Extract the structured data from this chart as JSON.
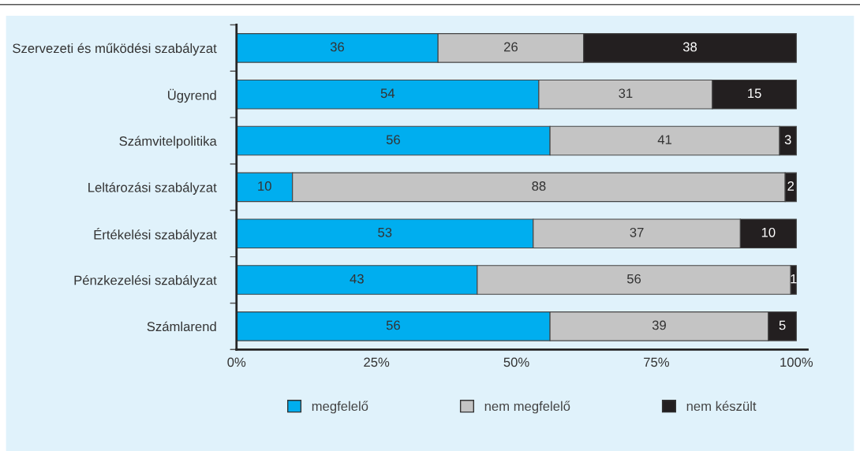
{
  "chart_data": {
    "type": "bar",
    "orientation": "horizontal",
    "stacked": true,
    "categories": [
      "Szervezeti és működési szabályzat",
      "Ügyrend",
      "Számvitelpolitika",
      "Leltározási szabályzat",
      "Értékelési szabályzat",
      "Pénzkezelési szabályzat",
      "Számlarend"
    ],
    "series": [
      {
        "name": "megfelelő",
        "color": "#00aeef",
        "values": [
          36,
          54,
          56,
          10,
          53,
          43,
          56
        ]
      },
      {
        "name": "nem megfelelő",
        "color": "#c4c4c4",
        "values": [
          26,
          31,
          41,
          88,
          37,
          56,
          39
        ]
      },
      {
        "name": "nem készült",
        "color": "#231f20",
        "values": [
          38,
          15,
          3,
          2,
          10,
          1,
          5
        ]
      }
    ],
    "xlim": [
      0,
      102
    ],
    "xticks": [
      {
        "value": 0,
        "label": "0%"
      },
      {
        "value": 25,
        "label": "25%"
      },
      {
        "value": 50,
        "label": "50%"
      },
      {
        "value": 75,
        "label": "75%"
      },
      {
        "value": 100,
        "label": "100%"
      }
    ],
    "data_labels": true,
    "legend": "bottom",
    "grid": false
  }
}
